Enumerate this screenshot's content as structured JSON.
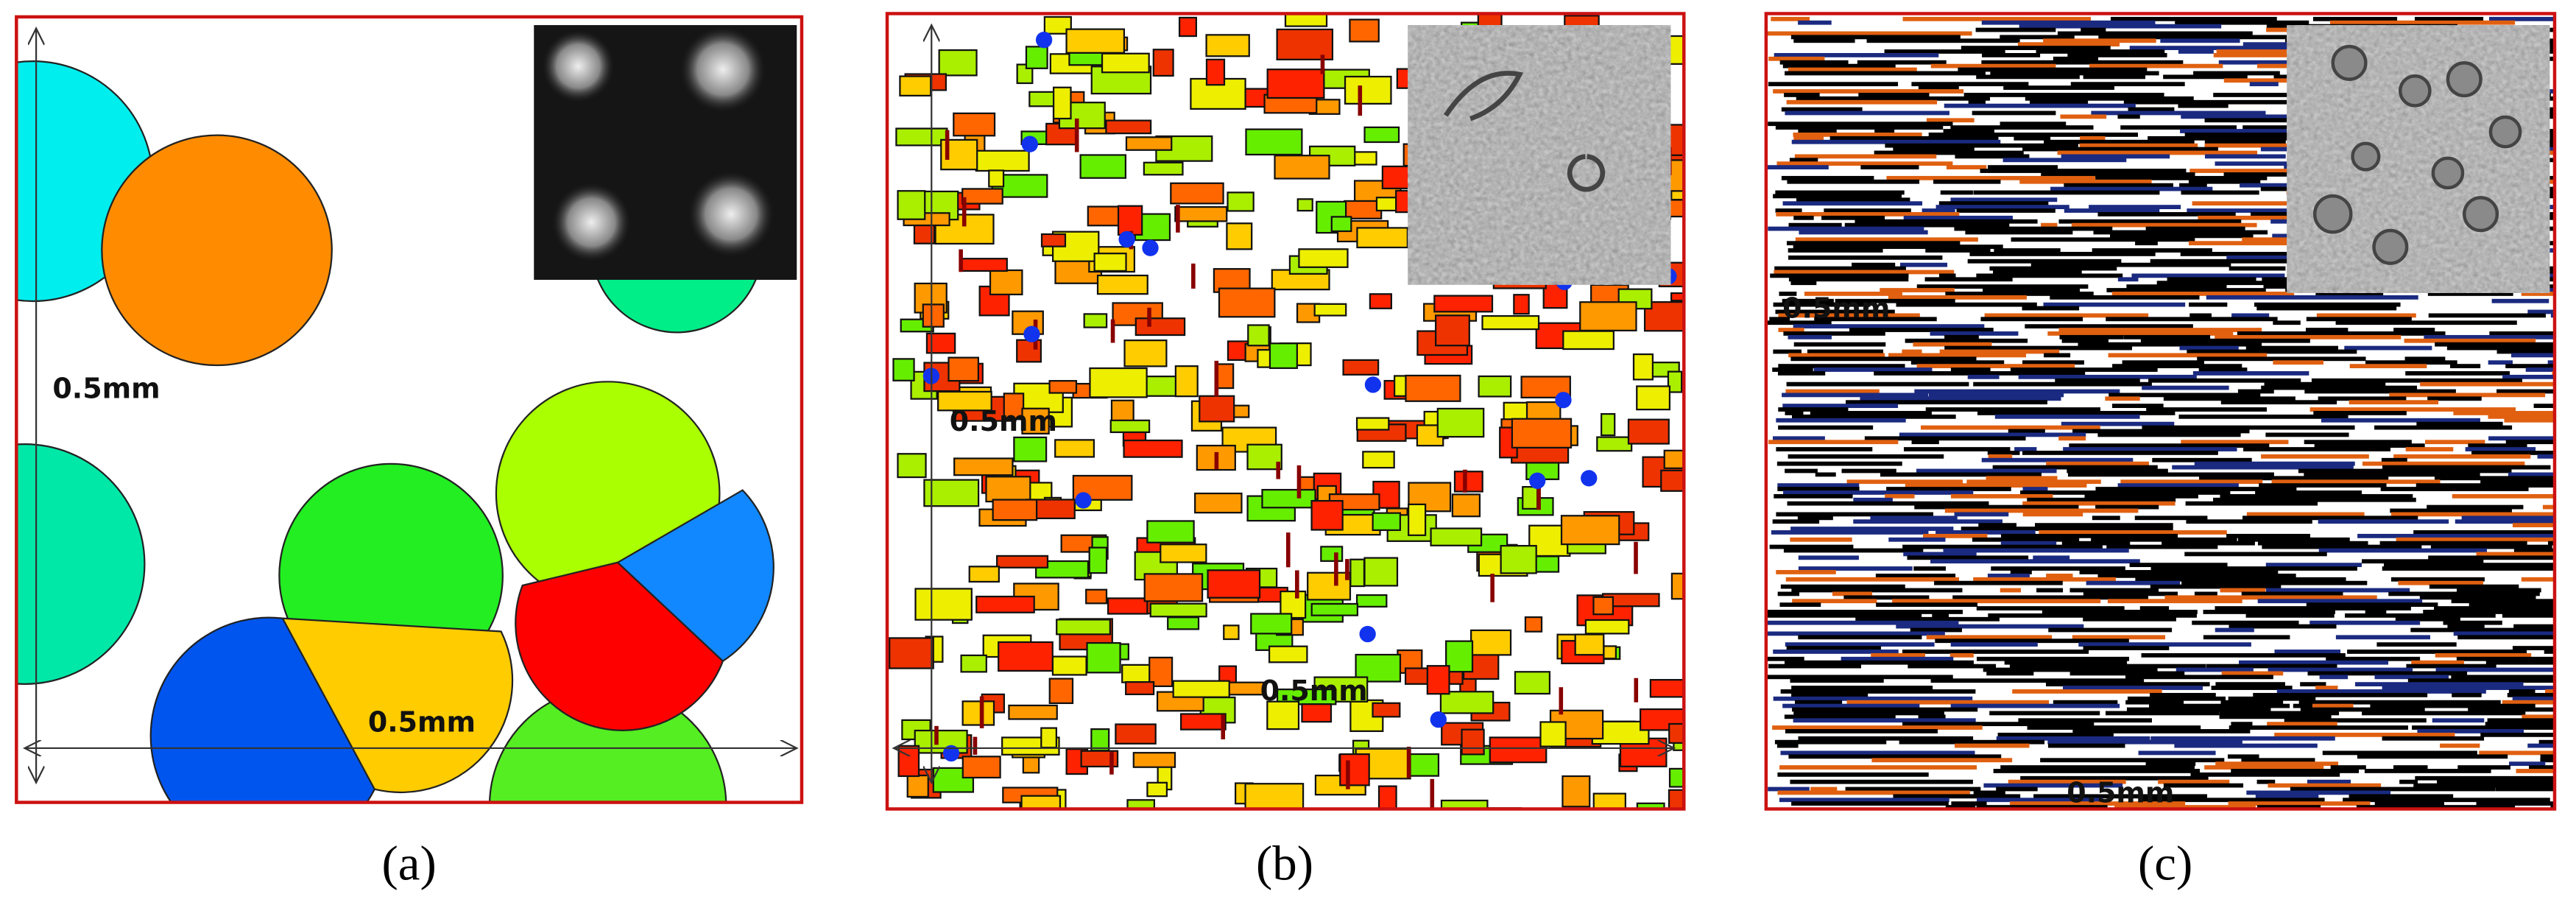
{
  "panels": [
    {
      "caption": "(a)",
      "scale_labels": [
        "0.5mm",
        "0.5mm"
      ]
    },
    {
      "caption": "(b)",
      "scale_labels": [
        "0.5mm",
        "0.5mm"
      ]
    },
    {
      "caption": "(c)",
      "scale_labels": [
        "0.5mm",
        "0.5mm"
      ]
    }
  ]
}
